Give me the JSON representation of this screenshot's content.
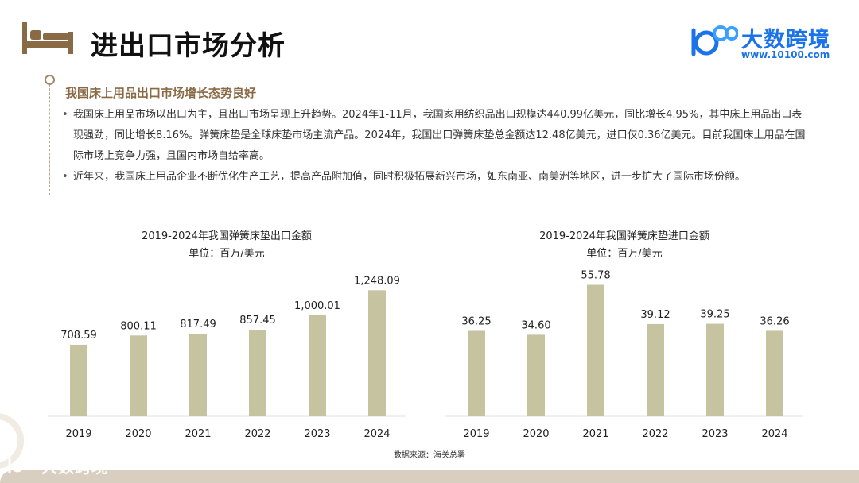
{
  "page": {
    "title": "进出口市场分析"
  },
  "brand": {
    "name": "大数跨境",
    "url": "www.10100.com",
    "accent": "#1a73e8"
  },
  "section": {
    "title": "我国床上用品出口市场增长态势良好",
    "bullets": [
      "我国床上用品市场以出口为主，且出口市场呈现上升趋势。2024年1-11月，我国家用纺织品出口规模达440.99亿美元，同比增长4.95%，其中床上用品出口表现强劲，同比增长8.16%。弹簧床垫是全球床垫市场主流产品。2024年，我国出口弹簧床垫总金额达12.48亿美元，进口仅0.36亿美元。目前我国床上用品在国际市场上竞争力强，且国内市场自给率高。",
      "近年来，我国床上用品企业不断优化生产工艺，提高产品附加值，同时积极拓展新兴市场，如东南亚、南美洲等地区，进一步扩大了国际市场份额。"
    ]
  },
  "chart_data": [
    {
      "type": "bar",
      "title": "2019-2024年我国弹簧床垫出口金额",
      "subtitle": "单位：百万/美元",
      "categories": [
        "2019",
        "2020",
        "2021",
        "2022",
        "2023",
        "2024"
      ],
      "values": [
        708.59,
        800.11,
        817.49,
        857.45,
        1000.01,
        1248.09
      ],
      "value_labels": [
        "708.59",
        "800.11",
        "817.49",
        "857.45",
        "1,000.01",
        "1,248.09"
      ],
      "ylim": [
        0,
        1400
      ],
      "grid": false,
      "bar_color": "#c6c4a0"
    },
    {
      "type": "bar",
      "title": "2019-2024年我国弹簧床垫进口金额",
      "subtitle": "单位：百万/美元",
      "categories": [
        "2019",
        "2020",
        "2021",
        "2022",
        "2023",
        "2024"
      ],
      "values": [
        36.25,
        34.6,
        55.78,
        39.12,
        39.25,
        36.26
      ],
      "value_labels": [
        "36.25",
        "34.60",
        "55.78",
        "39.12",
        "39.25",
        "36.26"
      ],
      "ylim": [
        0,
        60
      ],
      "grid": false,
      "bar_color": "#c6c4a0"
    }
  ],
  "source": "数据来源：海关总署",
  "icons": {
    "header": "bed-icon",
    "brand": "brand-logo-icon"
  }
}
